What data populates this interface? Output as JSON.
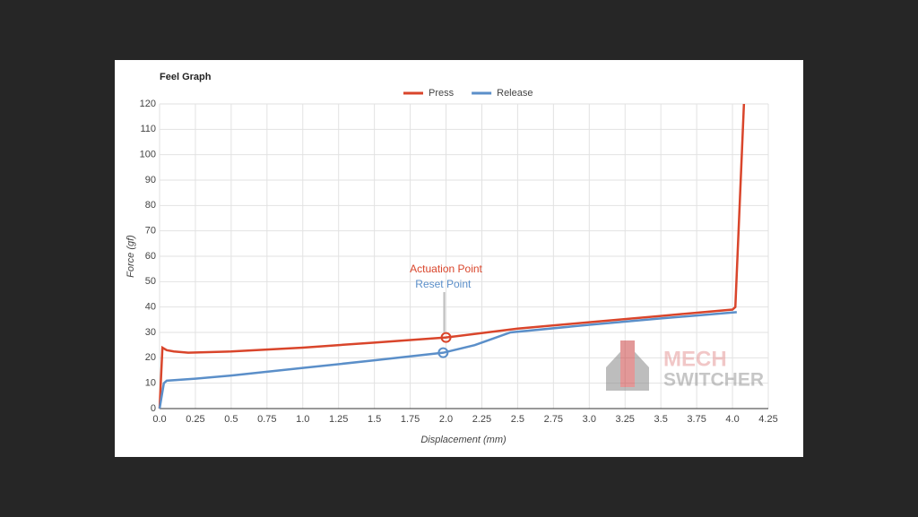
{
  "chart_data": {
    "type": "line",
    "title": "Feel Graph",
    "x_label": "Displacement (mm)",
    "y_label": "Force (gf)",
    "xlim": [
      0,
      4.25
    ],
    "ylim": [
      0,
      120
    ],
    "xticks": [
      {
        "value": 0,
        "label": "0.0"
      },
      0.25,
      0.5,
      0.75,
      {
        "value": 1,
        "label": "1.0"
      },
      1.25,
      1.5,
      1.75,
      {
        "value": 2,
        "label": "2.0"
      },
      2.25,
      2.5,
      2.75,
      {
        "value": 3,
        "label": "3.0"
      },
      3.25,
      3.5,
      3.75,
      {
        "value": 4,
        "label": "4.0"
      },
      4.25
    ],
    "yticks": [
      0,
      10,
      20,
      30,
      40,
      50,
      60,
      70,
      80,
      90,
      100,
      110,
      120
    ],
    "grid": true,
    "legend": "top",
    "series": [
      {
        "name": "Press",
        "color": "#d9452b",
        "x": [
          0,
          0.02,
          0.05,
          0.1,
          0.2,
          0.5,
          1.0,
          1.5,
          2.0,
          2.5,
          3.0,
          3.5,
          4.0,
          4.02,
          4.08
        ],
        "values": [
          0,
          24,
          23,
          22.5,
          22,
          22.5,
          24,
          26,
          28,
          31.5,
          34,
          36.5,
          39,
          40,
          120
        ]
      },
      {
        "name": "Release",
        "color": "#5b8fc9",
        "x": [
          0,
          0.03,
          0.05,
          0.25,
          0.5,
          1.0,
          1.5,
          1.98,
          2.2,
          2.45,
          3.0,
          3.5,
          4.03
        ],
        "values": [
          0,
          10,
          11,
          11.8,
          13,
          16,
          19,
          22,
          25,
          30,
          33,
          35.5,
          38
        ]
      }
    ],
    "annotations": [
      {
        "text": "Actuation Point",
        "x": 2.0,
        "y": 28,
        "color": "#d9452b"
      },
      {
        "text": "Reset Point",
        "x": 1.98,
        "y": 22,
        "color": "#5b8fc9"
      }
    ],
    "watermark": {
      "line1": "MECH",
      "line2": "SWITCHER"
    }
  }
}
